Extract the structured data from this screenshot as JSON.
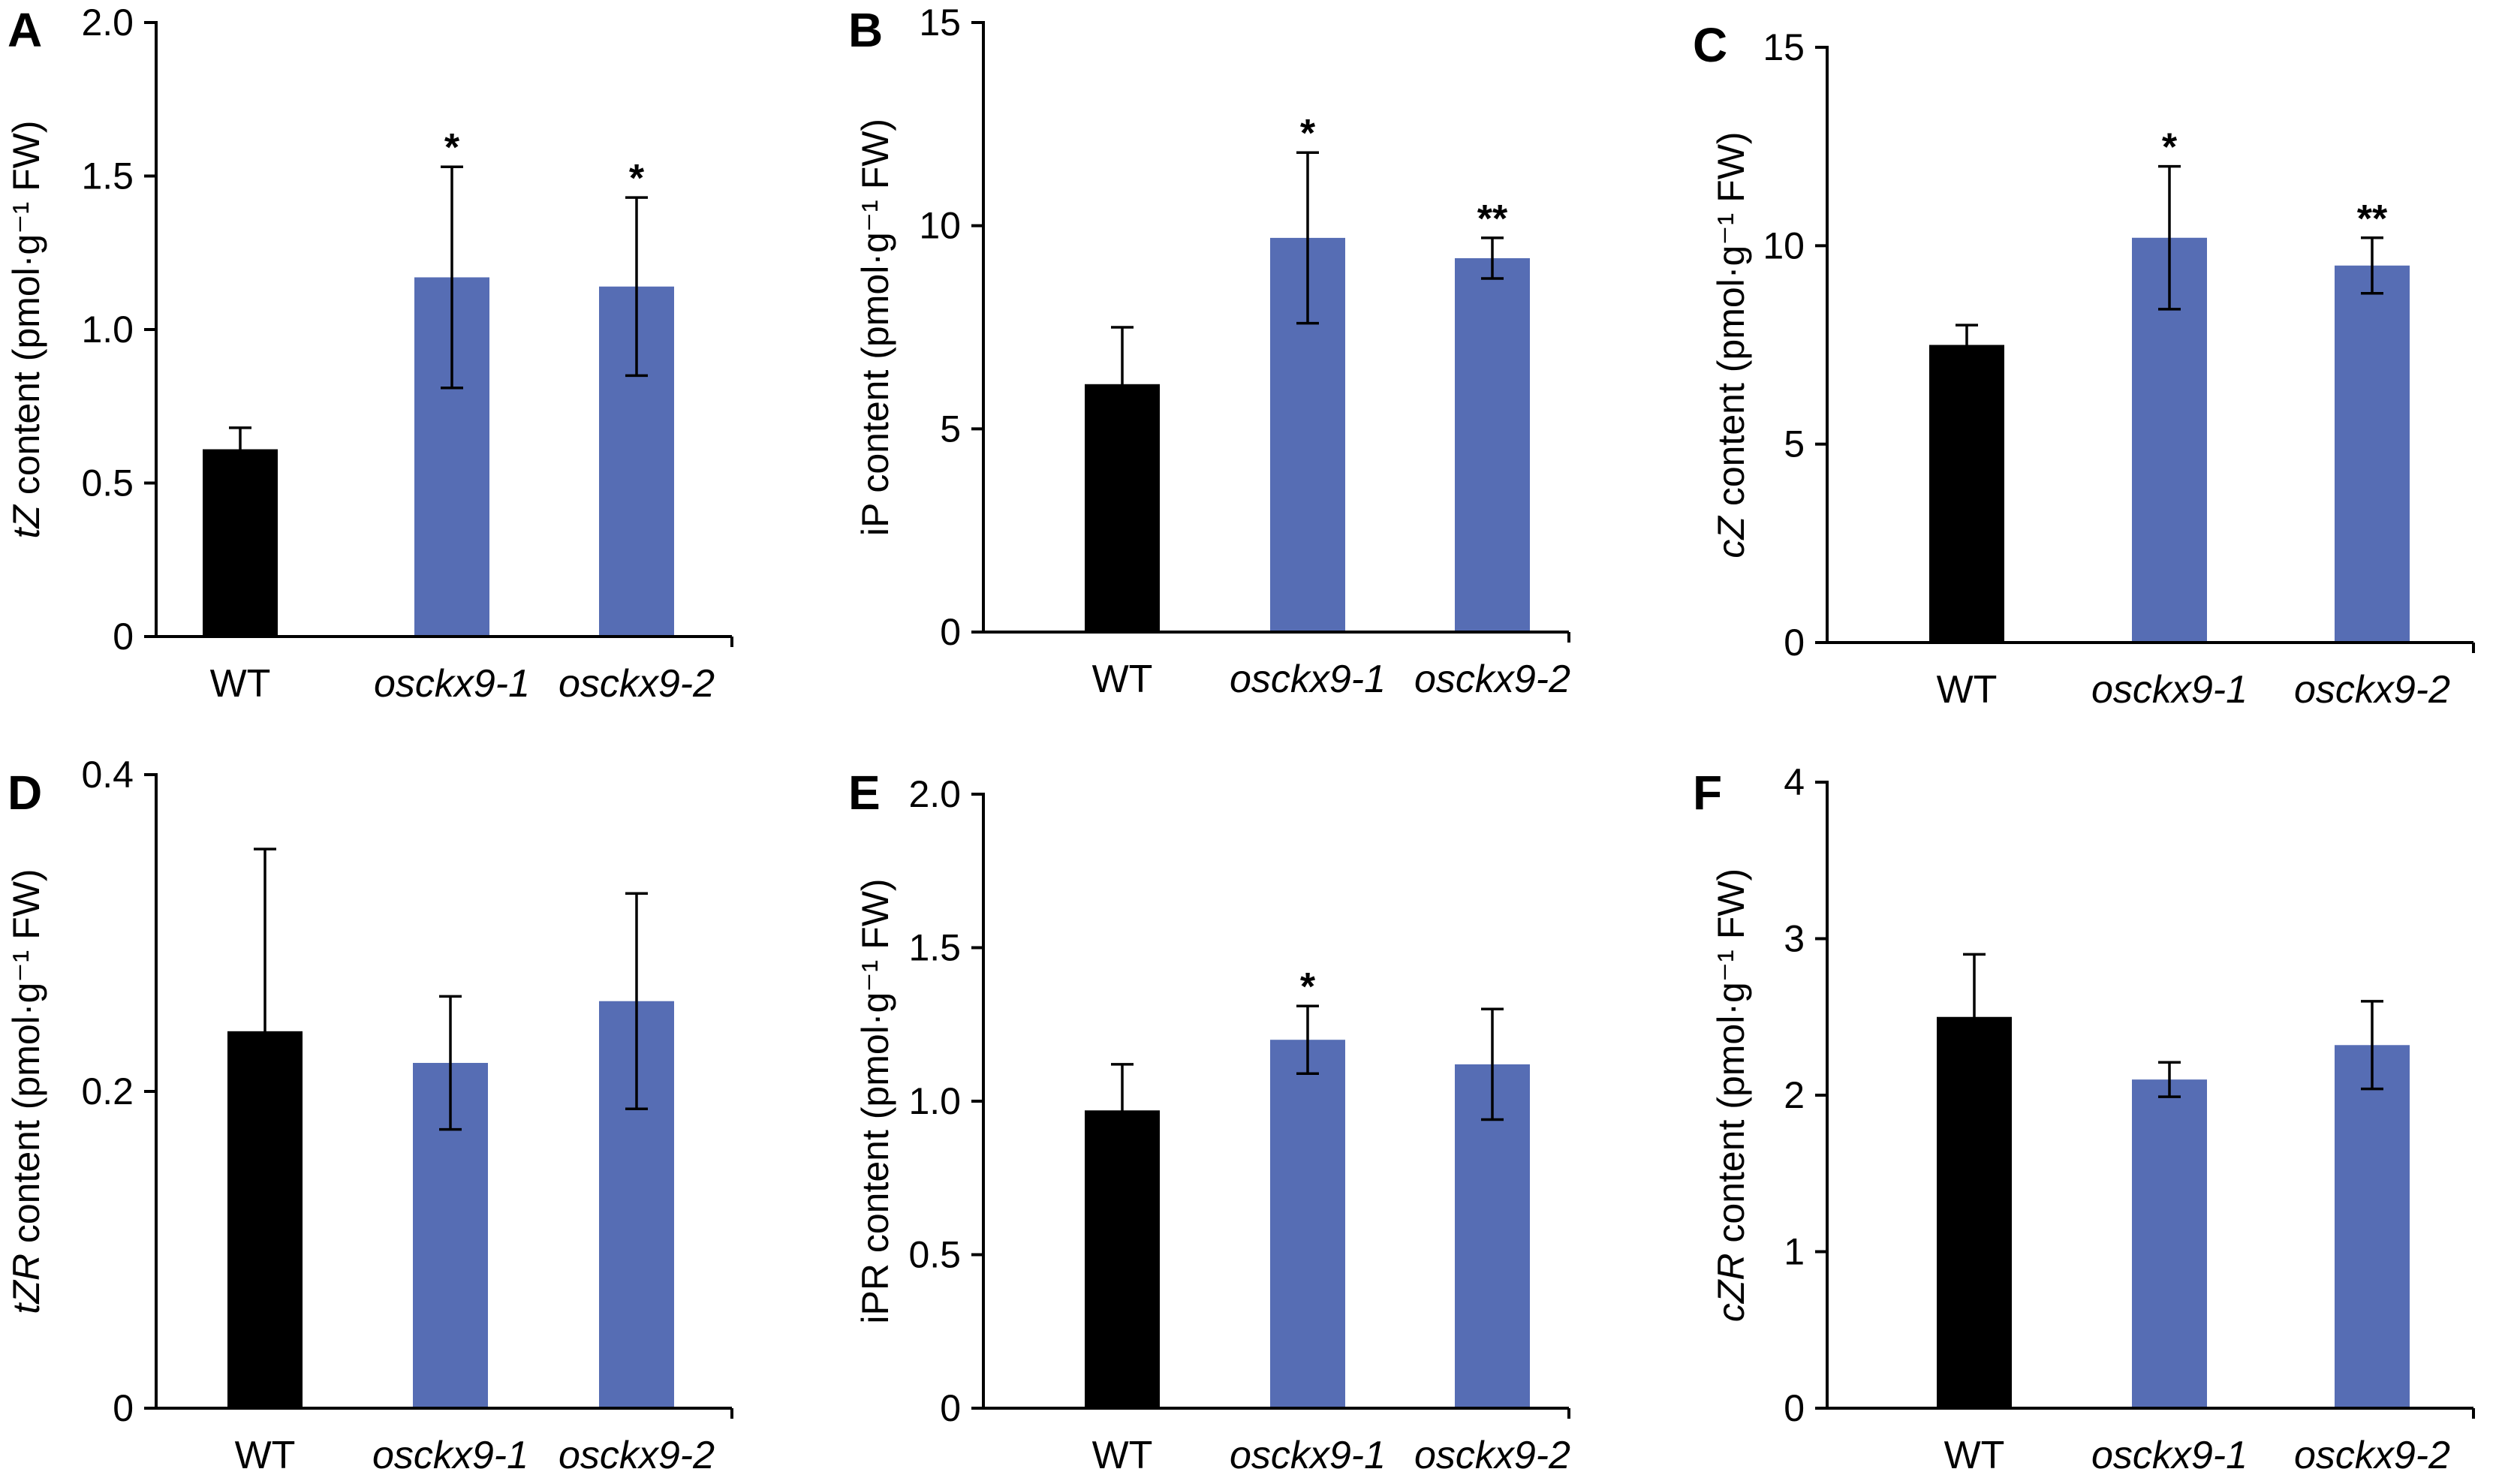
{
  "colors": {
    "wt": "#000000",
    "mutant": "#566db4",
    "axis": "#000000"
  },
  "chart_data": [
    {
      "panel": "A",
      "type": "bar",
      "ylabel_italic": "tZ",
      "ylabel_rest": " content (pmol·g⁻¹ FW)",
      "categories": [
        "WT",
        "osckx9-1",
        "osckx9-2"
      ],
      "values": [
        0.61,
        1.17,
        1.14
      ],
      "errors": [
        0.07,
        0.36,
        0.29
      ],
      "significance": [
        "",
        "*",
        "*"
      ],
      "ylim": [
        0,
        2.0
      ],
      "yticks": [
        0,
        0.5,
        1.0,
        1.5,
        2.0
      ],
      "ytick_labels": [
        "0",
        "0.5",
        "1.0",
        "1.5",
        "2.0"
      ]
    },
    {
      "panel": "B",
      "type": "bar",
      "ylabel_italic": "",
      "ylabel_rest": "iP content (pmol·g⁻¹ FW)",
      "categories": [
        "WT",
        "osckx9-1",
        "osckx9-2"
      ],
      "values": [
        6.1,
        9.7,
        9.2
      ],
      "errors": [
        1.4,
        2.1,
        0.5
      ],
      "significance": [
        "",
        "*",
        "**"
      ],
      "ylim": [
        0,
        15
      ],
      "yticks": [
        0,
        5,
        10,
        15
      ],
      "ytick_labels": [
        "0",
        "5",
        "10",
        "15"
      ]
    },
    {
      "panel": "C",
      "type": "bar",
      "ylabel_italic": "cZ",
      "ylabel_rest": " content (pmol·g⁻¹ FW)",
      "categories": [
        "WT",
        "osckx9-1",
        "osckx9-2"
      ],
      "values": [
        7.5,
        10.2,
        9.5
      ],
      "errors": [
        0.5,
        1.8,
        0.7
      ],
      "significance": [
        "",
        "*",
        "**"
      ],
      "ylim": [
        0,
        15
      ],
      "yticks": [
        0,
        5,
        10,
        15
      ],
      "ytick_labels": [
        "0",
        "5",
        "10",
        "15"
      ]
    },
    {
      "panel": "D",
      "type": "bar",
      "ylabel_italic": "tZR",
      "ylabel_rest": " content (pmol·g⁻¹ FW)",
      "categories": [
        "WT",
        "osckx9-1",
        "osckx9-2"
      ],
      "values": [
        0.238,
        0.218,
        0.257
      ],
      "errors": [
        0.115,
        0.042,
        0.068
      ],
      "significance": [
        "",
        "",
        ""
      ],
      "ylim": [
        0,
        0.4
      ],
      "yticks": [
        0,
        0.2,
        0.4
      ],
      "ytick_labels": [
        "0",
        "0.2",
        "0.4"
      ]
    },
    {
      "panel": "E",
      "type": "bar",
      "ylabel_italic": "",
      "ylabel_rest": "iPR content (pmol·g⁻¹ FW)",
      "categories": [
        "WT",
        "osckx9-1",
        "osckx9-2"
      ],
      "values": [
        0.97,
        1.2,
        1.12
      ],
      "errors": [
        0.15,
        0.11,
        0.18
      ],
      "significance": [
        "",
        "*",
        ""
      ],
      "ylim": [
        0,
        2.0
      ],
      "yticks": [
        0,
        0.5,
        1.0,
        1.5,
        2.0
      ],
      "ytick_labels": [
        "0",
        "0.5",
        "1.0",
        "1.5",
        "2.0"
      ]
    },
    {
      "panel": "F",
      "type": "bar",
      "ylabel_italic": "cZR",
      "ylabel_rest": " content (pmol·g⁻¹ FW)",
      "categories": [
        "WT",
        "osckx9-1",
        "osckx9-2"
      ],
      "values": [
        2.5,
        2.1,
        2.32
      ],
      "errors": [
        0.4,
        0.11,
        0.28
      ],
      "significance": [
        "",
        "",
        ""
      ],
      "ylim": [
        0,
        4
      ],
      "yticks": [
        0,
        1,
        2,
        3,
        4
      ],
      "ytick_labels": [
        "0",
        "1",
        "2",
        "3",
        "4"
      ]
    }
  ]
}
